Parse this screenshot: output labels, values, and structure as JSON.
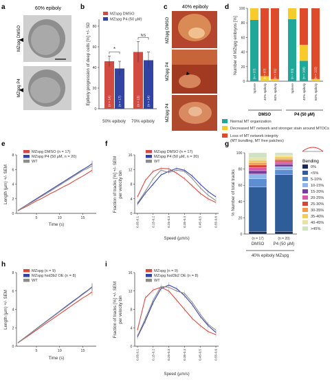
{
  "panels": {
    "a": {
      "letter": "a",
      "header": "60% epiboly",
      "row_labels": [
        "MZspg DMSO",
        "MZspg P4"
      ]
    },
    "c": {
      "letter": "c",
      "header": "40% epiboly",
      "row_labels": [
        "MZspg DMSO",
        "MZspg P4",
        "MZspg P4"
      ]
    },
    "b": {
      "letter": "b"
    },
    "d": {
      "letter": "d"
    },
    "e": {
      "letter": "e"
    },
    "f": {
      "letter": "f"
    },
    "g": {
      "letter": "g"
    },
    "h": {
      "letter": "h"
    },
    "i": {
      "letter": "i"
    }
  },
  "colors": {
    "red": "#d24b43",
    "blue": "#3343a4",
    "gray": "#8c8c8c",
    "teal": "#1fa899",
    "yellow": "#f6cb2a",
    "orange_red": "#df4b2a",
    "embryo": "#b0b0b0"
  },
  "chart_data": [
    {
      "panel": "b",
      "type": "bar",
      "ylabel": "Epiboly progression of deep cells [%] +/- SD",
      "ylim": [
        0,
        80
      ],
      "yticks": [
        "0",
        "20",
        "40",
        "60",
        "80"
      ],
      "legend": [
        "MZspg DMSO",
        "MZspg P4 (50 µM)"
      ],
      "groups": [
        "50% epiboly",
        "70% epiboly"
      ],
      "series": [
        {
          "name": "MZspg DMSO",
          "values": [
            46,
            55
          ],
          "err": [
            5,
            10
          ],
          "n": [
            "(n = 14)",
            "(n = 13)"
          ]
        },
        {
          "name": "MZspg P4 (50 µM)",
          "values": [
            39,
            47
          ],
          "err": [
            7,
            8
          ],
          "n": [
            "(n = 17)",
            "(n = 14)"
          ]
        }
      ],
      "significance": [
        "*",
        "NS"
      ]
    },
    {
      "panel": "d",
      "type": "bar",
      "stacked": true,
      "ylabel": "Number of MZspg embryos [%]",
      "ylim": [
        0,
        100
      ],
      "yticks": [
        "0",
        "20",
        "40",
        "60",
        "80",
        "100"
      ],
      "categories": [
        "Sphere",
        "40% epiboly",
        "60% epiboly",
        "Sphere",
        "40% epiboly",
        "60% epiboly"
      ],
      "n_labels": [
        "(n = 37)",
        "(n = 97)",
        "(n = 91)",
        "(n = 53)",
        "(n = 168)",
        "(n = 122)"
      ],
      "groups": [
        "DMSO",
        "P4 (50 µM)"
      ],
      "series": [
        {
          "name": "Normal MT organization",
          "values": [
            84,
            0,
            0,
            85,
            28,
            0
          ]
        },
        {
          "name": "Decreased MT network and stronger stain around MTOCs",
          "values": [
            16,
            7,
            3,
            15,
            22,
            3
          ]
        },
        {
          "name": "Loss of MT network integrity (MT bundling, MT free patches)",
          "values": [
            0,
            93,
            97,
            0,
            50,
            97
          ]
        }
      ],
      "legend": [
        "Normal MT organization",
        "Decreased MT network and stronger stain around MTOCs",
        "Loss of MT network integrity",
        "(MT bundling, MT free patches)"
      ]
    },
    {
      "panel": "e",
      "type": "line",
      "xlabel": "Time (s)",
      "ylabel": "Length (µm) +/- SEM",
      "ylim": [
        0,
        8
      ],
      "yticks": [
        "0",
        "2",
        "4",
        "6",
        "8"
      ],
      "xticks": [
        "5",
        "10",
        "15"
      ],
      "x": [
        1,
        2,
        3,
        4,
        5,
        6,
        7,
        8,
        9,
        10,
        11,
        12,
        13,
        14,
        15,
        16,
        17
      ],
      "series": [
        {
          "name": "MZspg DMSO (n = 17)",
          "values": [
            0.35,
            0.7,
            1.0,
            1.35,
            1.7,
            2.0,
            2.35,
            2.7,
            3.0,
            3.35,
            3.7,
            4.0,
            4.4,
            4.75,
            5.1,
            5.5,
            5.9
          ]
        },
        {
          "name": "MZspg P4 (50 µM, n = 20)",
          "values": [
            0.4,
            0.8,
            1.2,
            1.6,
            2.0,
            2.4,
            2.8,
            3.2,
            3.6,
            4.0,
            4.4,
            4.8,
            5.2,
            5.6,
            6.0,
            6.35,
            6.8
          ]
        },
        {
          "name": "WT",
          "values": [
            0.38,
            0.78,
            1.15,
            1.52,
            1.9,
            2.3,
            2.65,
            3.05,
            3.45,
            3.85,
            4.25,
            4.65,
            5.05,
            5.45,
            5.85,
            6.15,
            6.5
          ]
        }
      ]
    },
    {
      "panel": "f",
      "type": "line",
      "xlabel": "Speed (µm/s)",
      "ylabel": "Fraction of tracks [%] +/- SEM per velocity bin",
      "ylim": [
        0,
        16
      ],
      "yticks": [
        "0",
        "4",
        "8",
        "12",
        "16"
      ],
      "xticks": [
        "0.05-0.1",
        "0.15-0.2",
        "0.25-0.3",
        "0.35-0.4",
        "0.45-0.5",
        "0.55-0.6"
      ],
      "x": [
        0.075,
        0.125,
        0.175,
        0.225,
        0.275,
        0.325,
        0.375,
        0.425,
        0.475,
        0.525,
        0.575
      ],
      "series": [
        {
          "name": "MZspg DMSO (n = 17)",
          "values": [
            4.5,
            9.0,
            11.5,
            12.3,
            12.2,
            11.0,
            9.5,
            7.5,
            5.5,
            4.0,
            3.0
          ]
        },
        {
          "name": "MZspg P4 (50 µM, n = 20)",
          "values": [
            2.5,
            5.5,
            8.0,
            10.5,
            11.5,
            12.3,
            11.8,
            10.2,
            8.0,
            6.0,
            4.5
          ]
        },
        {
          "name": "WT",
          "values": [
            2.8,
            6.0,
            9.5,
            11.8,
            11.2,
            11.8,
            11.5,
            9.5,
            7.0,
            5.0,
            3.5
          ]
        }
      ]
    },
    {
      "panel": "g",
      "type": "bar",
      "stacked": true,
      "ylabel": "% Number of total tracks",
      "ylim": [
        0,
        100
      ],
      "yticks": [
        "0",
        "20",
        "40",
        "60",
        "80",
        "100"
      ],
      "categories": [
        "DMSO",
        "P4 (50 µM)"
      ],
      "n_labels": [
        "(n = 17)",
        "(n = 20)"
      ],
      "caption": "40% epiboly MZspg",
      "legend_title": "Bending",
      "series": [
        {
          "name": "0%",
          "color": "#1b2b55",
          "values": [
            3,
            3
          ]
        },
        {
          "name": "<5%",
          "color": "#2f5d99",
          "values": [
            55,
            70
          ]
        },
        {
          "name": "5-10%",
          "color": "#5c8ed0",
          "values": [
            10,
            6
          ]
        },
        {
          "name": "10-15%",
          "color": "#8fb6ec",
          "values": [
            6,
            4
          ]
        },
        {
          "name": "15-20%",
          "color": "#7a3b9f",
          "values": [
            4,
            3
          ]
        },
        {
          "name": "20-25%",
          "color": "#d45aa8",
          "values": [
            4,
            3
          ]
        },
        {
          "name": "25-30%",
          "color": "#d3473a",
          "values": [
            3,
            2
          ]
        },
        {
          "name": "30-35%",
          "color": "#f29a4a",
          "values": [
            3,
            2
          ]
        },
        {
          "name": "35-40%",
          "color": "#f4cc5a",
          "values": [
            3,
            2
          ]
        },
        {
          "name": "40-45%",
          "color": "#e6e3a0",
          "values": [
            3,
            2
          ]
        },
        {
          "name": ">45%",
          "color": "#cfe3c2",
          "values": [
            6,
            3
          ]
        }
      ]
    },
    {
      "panel": "h",
      "type": "line",
      "xlabel": "Time (s)",
      "ylabel": "Length (µm) +/- SEM",
      "ylim": [
        0,
        8
      ],
      "yticks": [
        "0",
        "2",
        "4",
        "6",
        "8"
      ],
      "xticks": [
        "5",
        "10",
        "15"
      ],
      "x": [
        1,
        2,
        3,
        4,
        5,
        6,
        7,
        8,
        9,
        10,
        11,
        12,
        13,
        14,
        15,
        16,
        17
      ],
      "series": [
        {
          "name": "MZspg (n = 9)",
          "values": [
            0.35,
            0.7,
            1.05,
            1.4,
            1.75,
            2.1,
            2.45,
            2.8,
            3.15,
            3.5,
            3.85,
            4.2,
            4.55,
            4.9,
            5.25,
            5.55,
            5.9
          ]
        },
        {
          "name": "MZspg hsd3b2 OE (n = 8)",
          "values": [
            0.38,
            0.76,
            1.14,
            1.52,
            1.9,
            2.28,
            2.66,
            3.04,
            3.42,
            3.8,
            4.18,
            4.56,
            4.94,
            5.3,
            5.7,
            6.05,
            6.45
          ]
        },
        {
          "name": "WT",
          "values": [
            0.37,
            0.75,
            1.12,
            1.5,
            1.88,
            2.25,
            2.62,
            3.0,
            3.37,
            3.75,
            4.12,
            4.5,
            4.87,
            5.25,
            5.62,
            6.0,
            6.4
          ]
        }
      ]
    },
    {
      "panel": "i",
      "type": "line",
      "xlabel": "Speed (µm/s)",
      "ylabel": "Fraction of tracks [%] +/- SEM per velocity bin",
      "ylim": [
        0,
        16
      ],
      "yticks": [
        "0",
        "4",
        "8",
        "12",
        "16"
      ],
      "xticks": [
        "0.05-0.1",
        "0.15-0.2",
        "0.25-0.3",
        "0.35-0.4",
        "0.45-0.5",
        "0.55-0.6"
      ],
      "x": [
        0.075,
        0.125,
        0.175,
        0.225,
        0.275,
        0.325,
        0.375,
        0.425,
        0.475,
        0.525,
        0.575
      ],
      "series": [
        {
          "name": "MZspg (n = 9)",
          "values": [
            3.5,
            10.5,
            12.2,
            12.8,
            12.0,
            10.0,
            8.0,
            6.0,
            4.5,
            3.2,
            2.5
          ]
        },
        {
          "name": "MZspg hsd3b2 OE (n = 8)",
          "values": [
            2.0,
            5.5,
            9.5,
            12.5,
            13.3,
            12.5,
            11.0,
            9.0,
            6.5,
            4.5,
            3.0
          ]
        },
        {
          "name": "WT",
          "values": [
            2.2,
            6.0,
            10.0,
            13.0,
            12.8,
            12.0,
            11.5,
            9.5,
            7.0,
            4.8,
            3.5
          ]
        }
      ]
    }
  ]
}
